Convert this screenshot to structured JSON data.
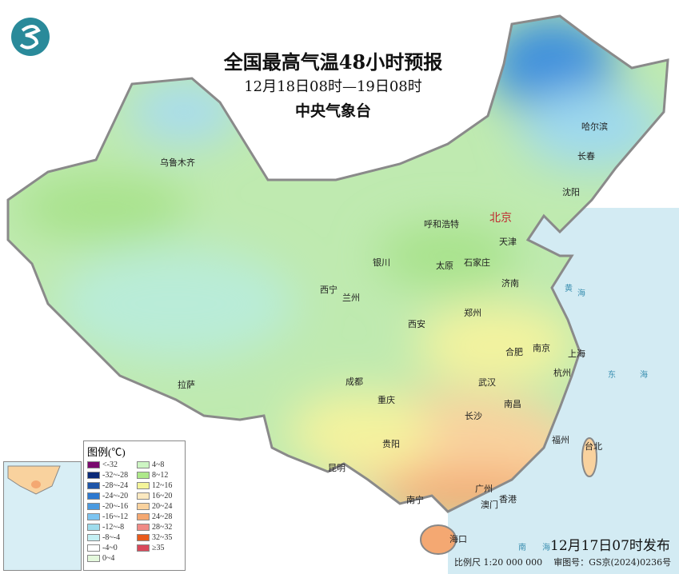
{
  "header": {
    "title": "全国最高气温48小时预报",
    "period": "12月18日08时—19日08时",
    "agency": "中央气象台",
    "logo": "nmc-logo"
  },
  "cities": [
    {
      "name": "乌鲁木齐"
    },
    {
      "name": "哈尔滨"
    },
    {
      "name": "长春"
    },
    {
      "name": "沈阳"
    },
    {
      "name": "呼和浩特"
    },
    {
      "name": "北京",
      "capital": true
    },
    {
      "name": "天津"
    },
    {
      "name": "银川"
    },
    {
      "name": "太原"
    },
    {
      "name": "石家庄"
    },
    {
      "name": "济南"
    },
    {
      "name": "西宁"
    },
    {
      "name": "兰州"
    },
    {
      "name": "西安"
    },
    {
      "name": "郑州"
    },
    {
      "name": "合肥"
    },
    {
      "name": "南京"
    },
    {
      "name": "上海"
    },
    {
      "name": "杭州"
    },
    {
      "name": "拉萨"
    },
    {
      "name": "成都"
    },
    {
      "name": "武汉"
    },
    {
      "name": "重庆"
    },
    {
      "name": "南昌"
    },
    {
      "name": "长沙"
    },
    {
      "name": "福州"
    },
    {
      "name": "台北"
    },
    {
      "name": "贵阳"
    },
    {
      "name": "昆明"
    },
    {
      "name": "南宁"
    },
    {
      "name": "广州"
    },
    {
      "name": "澳门"
    },
    {
      "name": "香港"
    },
    {
      "name": "海口"
    }
  ],
  "seas": [
    "黄",
    "海",
    "东",
    "海",
    "南",
    "海"
  ],
  "legend": {
    "title": "图例(℃)",
    "items": [
      {
        "label": "<-32",
        "color": "#7a0a6e"
      },
      {
        "label": "4~8",
        "color": "#cdf5c3"
      },
      {
        "label": "-32~-28",
        "color": "#0b2a78"
      },
      {
        "label": "8~12",
        "color": "#aee88a"
      },
      {
        "label": "-28~-24",
        "color": "#1e55a8"
      },
      {
        "label": "12~16",
        "color": "#f4f59a"
      },
      {
        "label": "-24~-20",
        "color": "#2c78d0"
      },
      {
        "label": "16~20",
        "color": "#fbe9c0"
      },
      {
        "label": "-20~-16",
        "color": "#4a9ae0"
      },
      {
        "label": "20~24",
        "color": "#f9d29e"
      },
      {
        "label": "-16~-12",
        "color": "#7cc4f0"
      },
      {
        "label": "24~28",
        "color": "#f4a872"
      },
      {
        "label": "-12~-8",
        "color": "#9edcec"
      },
      {
        "label": "28~32",
        "color": "#f08a86"
      },
      {
        "label": "-8~-4",
        "color": "#c4f0f4"
      },
      {
        "label": "32~35",
        "color": "#e85a1c"
      },
      {
        "label": "-4~0",
        "color": "#ffffff"
      },
      {
        "label": "≥35",
        "color": "#d9485a"
      },
      {
        "label": "0~4",
        "color": "#e4f8dc"
      }
    ]
  },
  "footer": {
    "published": "12月17日07时发布",
    "scale": "比例尺 1:20 000 000",
    "approval": "审图号：GS京(2024)0236号"
  }
}
